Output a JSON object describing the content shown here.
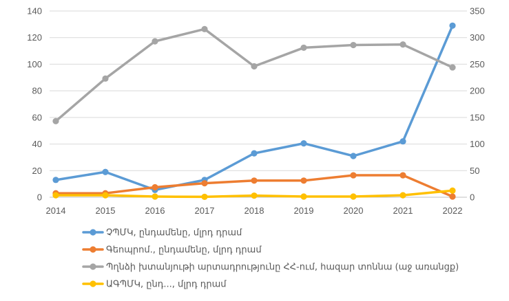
{
  "chart_data": {
    "type": "line",
    "categories": [
      "2014",
      "2015",
      "2016",
      "2017",
      "2018",
      "2019",
      "2020",
      "2021",
      "2022"
    ],
    "y_left": {
      "ylim": [
        0,
        140
      ],
      "ticks": [
        0,
        20,
        40,
        60,
        80,
        100,
        120,
        140
      ]
    },
    "y_right": {
      "ylim": [
        0,
        350
      ],
      "ticks": [
        0,
        50,
        100,
        150,
        200,
        250,
        300,
        350
      ]
    },
    "grid": true,
    "legend_position": "bottom",
    "series": [
      {
        "name": "ՉՊՄԿ, ընդամենը, մլրդ դրամ",
        "axis": "left",
        "color": "#5b9bd5",
        "values": [
          13,
          19,
          5.5,
          13,
          33,
          40.5,
          31,
          42,
          129
        ]
      },
      {
        "name": "Գեոպրոմ., ընդամենը, մլրդ դրամ",
        "axis": "left",
        "color": "#ed7d31",
        "values": [
          3,
          3,
          7.5,
          10.5,
          12.5,
          12.5,
          16.5,
          16.5,
          0.5
        ]
      },
      {
        "name": "Պղնձի խտանյութի արտադրությունը ՀՀ-ում, հազար տոննա (աջ առանցք)",
        "axis": "right",
        "color": "#a5a5a5",
        "values": [
          143,
          223,
          293,
          316,
          246,
          281,
          286,
          287,
          244
        ]
      },
      {
        "name": "ԱԳՊՄԿ, ընդ..., մլրդ դրամ",
        "axis": "left",
        "color": "#ffc000",
        "values": [
          1.5,
          1.5,
          0.5,
          0.3,
          1.2,
          0.5,
          0.5,
          1.5,
          5
        ]
      }
    ]
  }
}
